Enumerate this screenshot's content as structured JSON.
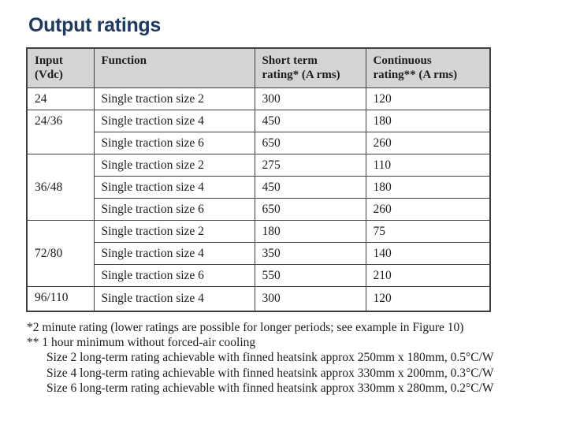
{
  "title": "Output ratings",
  "colors": {
    "title": "#1f3864",
    "header_bg": "#d4d4d4",
    "border": "#3f3f3f"
  },
  "table": {
    "headers": [
      "Input\n(Vdc)",
      "Function",
      "Short term\nrating* (A rms)",
      "Continuous\nrating** (A rms)"
    ],
    "groups": [
      {
        "input": "24",
        "valign": "top",
        "rows": [
          {
            "function": "Single traction size 2",
            "short_term": "300",
            "continuous": "120"
          }
        ]
      },
      {
        "input": "24/36",
        "valign": "top",
        "rows": [
          {
            "function": "Single traction size 4",
            "short_term": "450",
            "continuous": "180"
          },
          {
            "function": "Single traction size 6",
            "short_term": "650",
            "continuous": "260"
          }
        ]
      },
      {
        "input": "36/48",
        "valign": "middle",
        "rows": [
          {
            "function": "Single traction size 2",
            "short_term": "275",
            "continuous": "110"
          },
          {
            "function": "Single traction size 4",
            "short_term": "450",
            "continuous": "180"
          },
          {
            "function": "Single traction size 6",
            "short_term": "650",
            "continuous": "260"
          }
        ]
      },
      {
        "input": "72/80",
        "valign": "middle",
        "rows": [
          {
            "function": "Single traction size 2",
            "short_term": "180",
            "continuous": "75"
          },
          {
            "function": "Single traction size 4",
            "short_term": "350",
            "continuous": "140"
          },
          {
            "function": "Single traction size 6",
            "short_term": "550",
            "continuous": "210"
          }
        ]
      },
      {
        "input": "96/110",
        "valign": "top",
        "rows": [
          {
            "function": "Single traction size 4",
            "short_term": "300",
            "continuous": "120"
          }
        ]
      }
    ]
  },
  "footnotes": [
    "*2 minute rating (lower ratings are possible for longer periods; see example in Figure 10)",
    "** 1 hour minimum without forced-air cooling",
    "Size 2 long-term rating achievable with finned heatsink approx 250mm x 180mm, 0.5°C/W",
    "Size 4 long-term rating achievable with finned heatsink approx 330mm x 200mm, 0.3°C/W",
    "Size 6 long-term rating achievable with finned heatsink approx 330mm x 280mm, 0.2°C/W"
  ]
}
